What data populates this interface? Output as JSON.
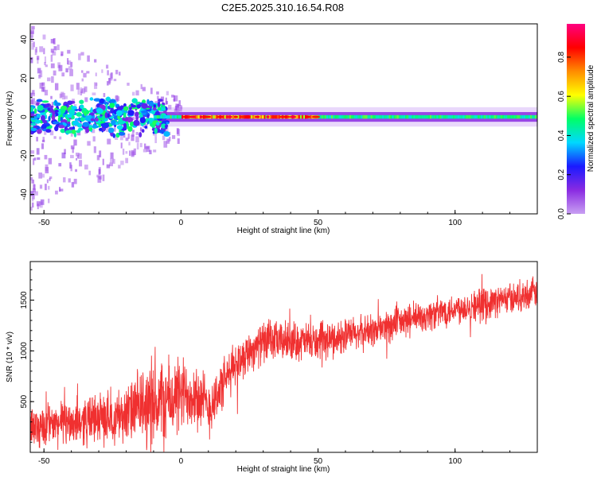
{
  "title": "C2E5.2025.310.16.54.R08",
  "colors": {
    "line": "#f03030",
    "axis": "#000000",
    "spectral_gradient": [
      "#c89ff2",
      "#8a2be2",
      "#1a1aff",
      "#00d8ff",
      "#00ff66",
      "#ffff00",
      "#ff8c00",
      "#ff0000",
      "#ff0080"
    ]
  },
  "chart_data": [
    {
      "type": "heatmap",
      "xlabel": "Height of straight line (km)",
      "ylabel": "Frequency (Hz)",
      "xlim": [
        -55,
        130
      ],
      "ylim": [
        -50,
        48
      ],
      "xticks": [
        -50,
        0,
        50,
        100
      ],
      "yticks": [
        -40,
        -20,
        0,
        20,
        40
      ],
      "grid": false,
      "colorbar": {
        "label": "Normalized spectral amplitude",
        "range": [
          0,
          0.97
        ],
        "ticks": [
          "0.0",
          "0.2",
          "0.4",
          "0.6",
          "0.8"
        ]
      },
      "band_center_hz": 0,
      "features": {
        "high_amplitude_segment_km": [
          0,
          50
        ],
        "broad_noisy_segment_km": [
          -55,
          -10
        ],
        "steady_band_segment_km": [
          50,
          130
        ]
      }
    },
    {
      "type": "line",
      "xlabel": "Height of straight line (km)",
      "ylabel": "SNR (10 * v/v)",
      "xlim": [
        -55,
        130
      ],
      "ylim": [
        0,
        1880
      ],
      "xticks": [
        -50,
        0,
        50,
        100
      ],
      "yticks": [
        500,
        1000,
        1500
      ],
      "grid": false,
      "trend": {
        "x": [
          -55,
          -40,
          -30,
          -20,
          -12,
          -5,
          0,
          5,
          10,
          15,
          20,
          25,
          30,
          40,
          50,
          60,
          70,
          80,
          90,
          100,
          110,
          120,
          130
        ],
        "y": [
          250,
          300,
          330,
          380,
          470,
          500,
          560,
          600,
          430,
          650,
          880,
          1000,
          1080,
          1100,
          1080,
          1150,
          1200,
          1280,
          1350,
          1420,
          1460,
          1520,
          1580
        ]
      },
      "noise_amplitude": {
        "x": [
          -55,
          -20,
          -10,
          20,
          60,
          130
        ],
        "y": [
          160,
          220,
          380,
          170,
          140,
          120
        ]
      }
    }
  ]
}
